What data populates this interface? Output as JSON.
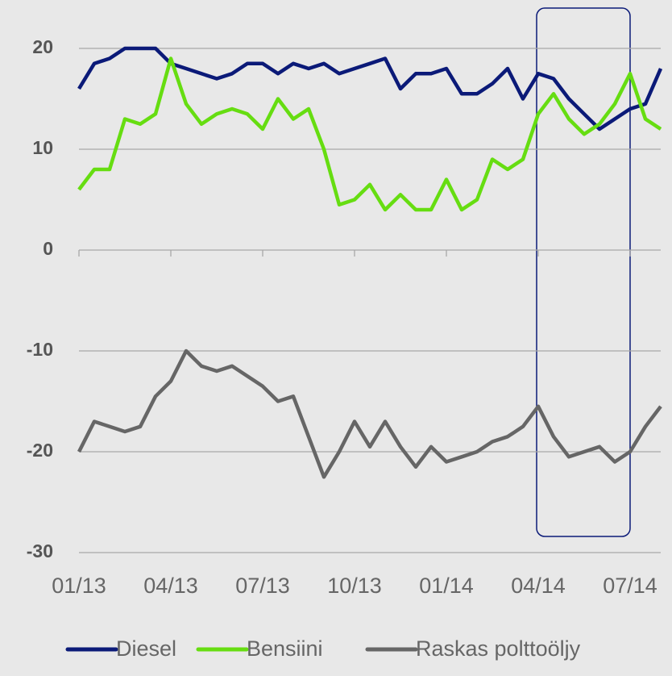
{
  "chart_data": {
    "type": "line",
    "x": [
      0,
      0.5,
      1,
      1.5,
      2,
      2.5,
      3,
      3.5,
      4,
      4.5,
      5,
      5.5,
      6,
      6.5,
      7,
      7.5,
      8,
      8.5,
      9,
      9.5,
      10,
      10.5,
      11,
      11.5,
      12,
      12.5,
      13,
      13.5,
      14,
      14.5,
      15,
      15.5,
      16,
      16.5,
      17,
      17.5,
      18,
      18.5,
      19
    ],
    "xlim": [
      0,
      19
    ],
    "xticks": [
      {
        "value": 0,
        "label": "01/13"
      },
      {
        "value": 3,
        "label": "04/13"
      },
      {
        "value": 6,
        "label": "07/13"
      },
      {
        "value": 9,
        "label": "10/13"
      },
      {
        "value": 12,
        "label": "01/14"
      },
      {
        "value": 15,
        "label": "04/14"
      },
      {
        "value": 18,
        "label": "07/14"
      }
    ],
    "ylim": [
      -30,
      22
    ],
    "yticks": [
      -30,
      -20,
      -10,
      0,
      10,
      20
    ],
    "grid": true,
    "legend": "bottom",
    "series": [
      {
        "name": "Diesel",
        "color": "#0b1a78",
        "values": [
          16,
          18.5,
          19,
          20,
          20,
          20,
          18.5,
          18,
          17.5,
          17,
          17.5,
          18.5,
          18.5,
          17.5,
          18.5,
          18,
          18.5,
          17.5,
          18,
          18.5,
          19,
          16,
          17.5,
          17.5,
          18,
          15.5,
          15.5,
          16.5,
          18,
          15,
          17.5,
          17,
          15,
          13.5,
          12,
          13,
          14,
          14.5,
          18
        ]
      },
      {
        "name": "Bensiini",
        "color": "#66dd11",
        "values": [
          6,
          8,
          8,
          13,
          12.5,
          13.5,
          19,
          14.5,
          12.5,
          13.5,
          14,
          13.5,
          12,
          15,
          13,
          14,
          10,
          4.5,
          5,
          6.5,
          4,
          5.5,
          4,
          4,
          7,
          4,
          5,
          9,
          8,
          9,
          13.5,
          15.5,
          13,
          11.5,
          12.5,
          14.5,
          17.5,
          13,
          12
        ]
      },
      {
        "name": "Raskas polttoöljy",
        "color": "#666666",
        "values": [
          -20,
          -17,
          -17.5,
          -18,
          -17.5,
          -14.5,
          -13,
          -10,
          -11.5,
          -12,
          -11.5,
          -12.5,
          -13.5,
          -15,
          -14.5,
          -18.5,
          -22.5,
          -20,
          -17,
          -19.5,
          -17,
          -19.5,
          -21.5,
          -19.5,
          -21,
          -20.5,
          -20,
          -19,
          -18.5,
          -17.5,
          -15.5,
          -18.5,
          -20.5,
          -20,
          -19.5,
          -21,
          -20,
          -17.5,
          -15.5
        ]
      }
    ]
  }
}
